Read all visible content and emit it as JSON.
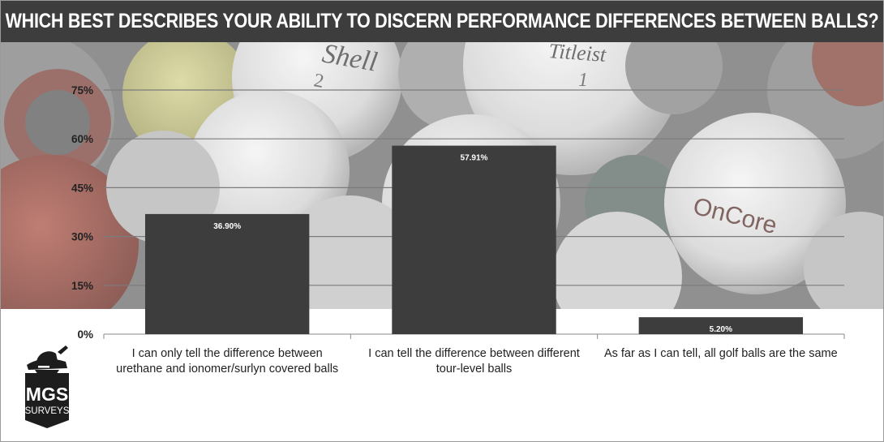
{
  "title": "WHICH BEST DESCRIBES YOUR ABILITY TO DISCERN PERFORMANCE DIFFERENCES BETWEEN BALLS?",
  "colors": {
    "bar": "#3d3d3d",
    "grid": "#7c7c7c",
    "title_bg": "#3d3d3d",
    "title_text": "#ffffff"
  },
  "background_ball_prints": [
    "Shell",
    "2",
    "Titleist",
    "1",
    "OnCore"
  ],
  "logo": {
    "icon": "spy-hat-golfer-icon",
    "line1": "MGS",
    "line2": "SURVEYS"
  },
  "chart_data": {
    "type": "bar",
    "title": "WHICH BEST DESCRIBES YOUR ABILITY TO DISCERN PERFORMANCE DIFFERENCES BETWEEN BALLS?",
    "categories": [
      [
        "I can only tell the difference between",
        "urethane and ionomer/surlyn covered balls"
      ],
      [
        "I can tell the difference between different",
        "tour-level balls"
      ],
      [
        "As far as I can tell, all golf balls are the same"
      ]
    ],
    "values": [
      36.9,
      57.91,
      5.2
    ],
    "data_labels": [
      "36.90%",
      "57.91%",
      "5.20%"
    ],
    "y_ticks": [
      0,
      15,
      30,
      45,
      60,
      75
    ],
    "y_tick_labels": [
      "0%",
      "15%",
      "30%",
      "45%",
      "60%",
      "75%"
    ],
    "ylim": [
      0,
      75
    ],
    "xlabel": "",
    "ylabel": "",
    "grid": true
  }
}
